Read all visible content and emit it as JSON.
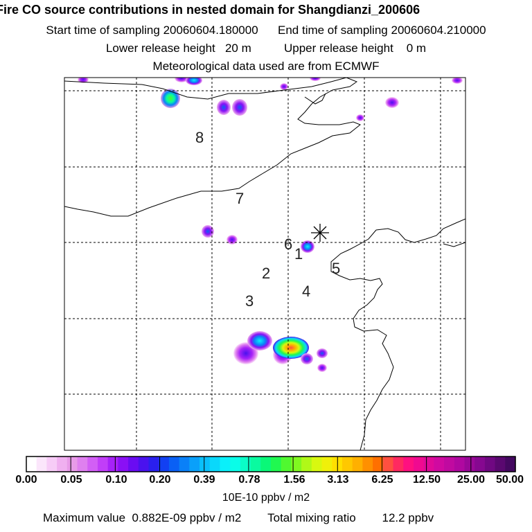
{
  "header": {
    "title": "Fire CO source contributions in nested domain for Shangdianzi_200606",
    "start_label": "Start time of sampling",
    "start_value": "20060604.180000",
    "end_label": "End time of sampling",
    "end_value": "20060604.210000",
    "lower_label": "Lower release height",
    "lower_value": "20 m",
    "upper_label": "Upper release height",
    "upper_value": "0 m",
    "met_text": "Meteorological data used are from ECMWF"
  },
  "map": {
    "region_labels": [
      "8",
      "7",
      "6",
      "1",
      "5",
      "2",
      "4",
      "3"
    ],
    "station_marker": "asterisk"
  },
  "colorbar": {
    "tick_labels": [
      "0.00",
      "0.05",
      "0.10",
      "0.20",
      "0.39",
      "0.78",
      "1.56",
      "3.13",
      "6.25",
      "12.50",
      "25.00",
      "50.00"
    ],
    "colors": [
      "#ffffff",
      "#fbe6fb",
      "#f7ccf7",
      "#f0b0f0",
      "#e89be8",
      "#df80ef",
      "#d25ff5",
      "#c13ef8",
      "#a722f8",
      "#8a10f5",
      "#6a0cf2",
      "#4a12ee",
      "#2a20ee",
      "#1240f2",
      "#0a60f5",
      "#0a80f8",
      "#0aa0fa",
      "#0ac0fb",
      "#0ad8fb",
      "#0af0fa",
      "#0afde8",
      "#0afdc8",
      "#0afaa0",
      "#0af878",
      "#20f850",
      "#50f830",
      "#80f820",
      "#b0f818",
      "#d8f810",
      "#f0f00a",
      "#ffe000",
      "#ffc800",
      "#ffb000",
      "#ff9000",
      "#ff7000",
      "#ff5040",
      "#ff2a60",
      "#ff1080",
      "#f00a90",
      "#e00a98",
      "#d00aa0",
      "#c00aa0",
      "#b008a0",
      "#9a0898",
      "#860890",
      "#700882",
      "#5a0870",
      "#440860"
    ],
    "units": "10E-10 ppbv / m2"
  },
  "footer": {
    "max_label": "Maximum value",
    "max_value": "0.882E-09 ppbv / m2",
    "total_label": "Total mixing ratio",
    "total_value": "12.2 ppbv"
  }
}
